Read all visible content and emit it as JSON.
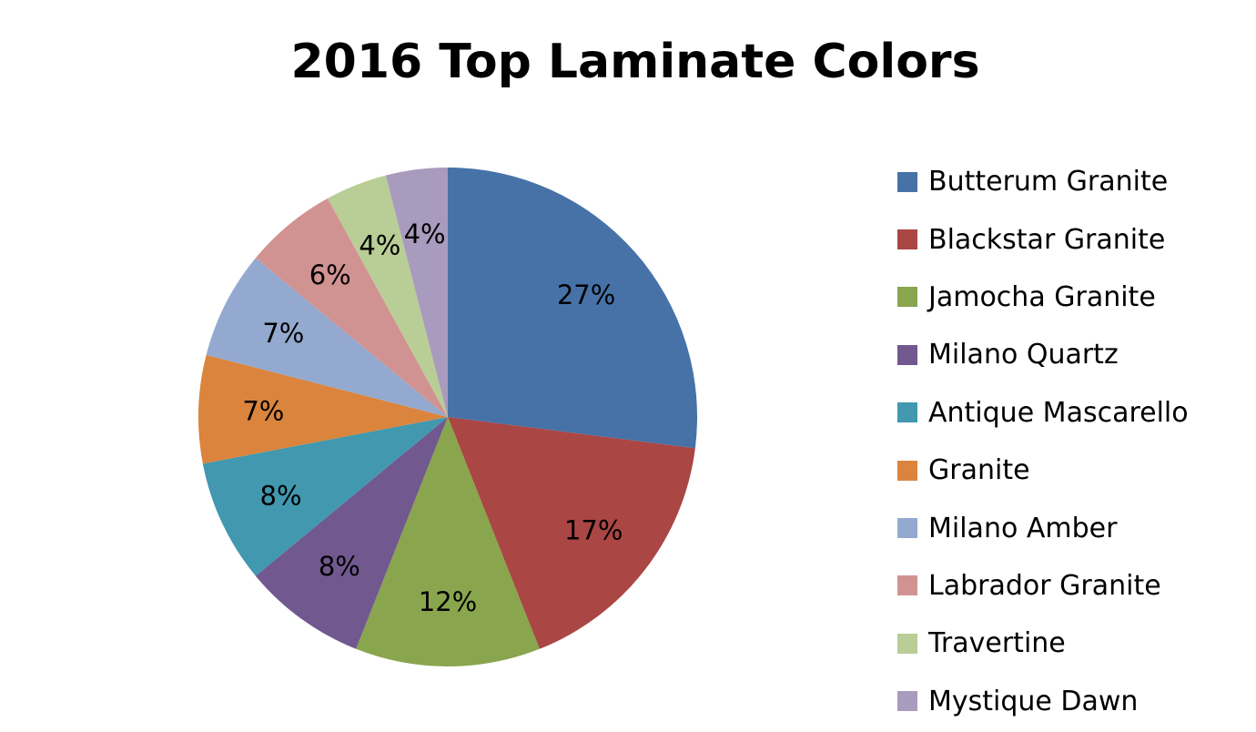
{
  "chart_data": {
    "type": "pie",
    "title": "2016 Top Laminate Colors",
    "categories": [
      "Butterum Granite",
      "Blackstar Granite",
      "Jamocha Granite",
      "Milano Quartz",
      "Antique Mascarello",
      "Granite",
      "Milano Amber",
      "Labrador Granite",
      "Travertine",
      "Mystique Dawn"
    ],
    "values": [
      27,
      17,
      12,
      8,
      8,
      7,
      7,
      6,
      4,
      4
    ],
    "value_labels": [
      "27%",
      "17%",
      "12%",
      "8%",
      "8%",
      "7%",
      "7%",
      "6%",
      "4%",
      "4%"
    ],
    "colors": [
      "#4672A8",
      "#AA4643",
      "#89A54E",
      "#71588F",
      "#4198AF",
      "#DB843D",
      "#93A9CF",
      "#D19392",
      "#B9CD96",
      "#A99BBD"
    ],
    "start_angle": "12 o'clock",
    "direction": "clockwise",
    "legend_position": "right"
  },
  "title": "2016 Top Laminate Colors",
  "legend": {
    "items": [
      {
        "label": "Butterum Granite",
        "color": "#4672A8"
      },
      {
        "label": "Blackstar Granite",
        "color": "#AA4643"
      },
      {
        "label": "Jamocha Granite",
        "color": "#89A54E"
      },
      {
        "label": "Milano Quartz",
        "color": "#71588F"
      },
      {
        "label": "Antique Mascarello",
        "color": "#4198AF"
      },
      {
        "label": "Granite",
        "color": "#DB843D"
      },
      {
        "label": "Milano Amber",
        "color": "#93A9CF"
      },
      {
        "label": "Labrador Granite",
        "color": "#D19392"
      },
      {
        "label": "Travertine",
        "color": "#B9CD96"
      },
      {
        "label": "Mystique Dawn",
        "color": "#A99BBD"
      }
    ]
  }
}
